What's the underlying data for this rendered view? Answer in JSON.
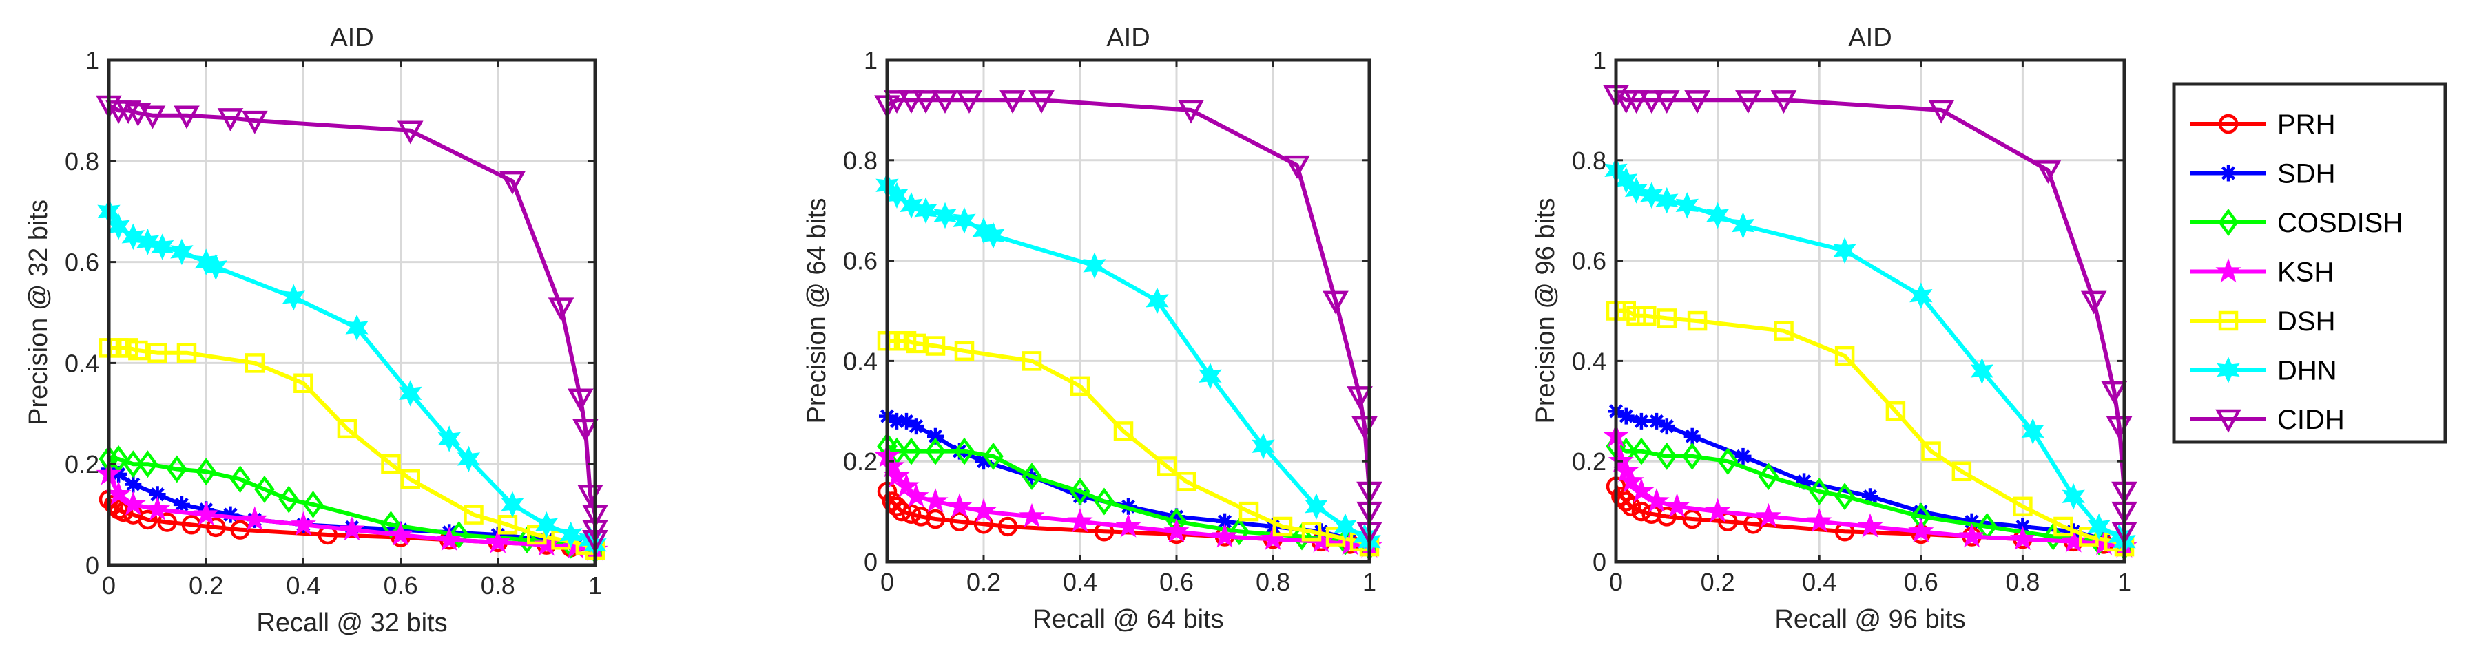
{
  "chart_data": [
    {
      "type": "line",
      "title": "AID",
      "xlabel": "Recall @ 32 bits",
      "ylabel": "Precision @ 32 bits",
      "xlim": [
        0,
        1
      ],
      "ylim": [
        0,
        1
      ],
      "xticks": [
        "0",
        "0.2",
        "0.4",
        "0.6",
        "0.8",
        "1"
      ],
      "yticks": [
        "0",
        "0.2",
        "0.4",
        "0.6",
        "0.8",
        "1"
      ],
      "grid": true,
      "series": [
        {
          "name": "PRH",
          "x": [
            0.0,
            0.01,
            0.02,
            0.03,
            0.05,
            0.08,
            0.12,
            0.17,
            0.22,
            0.27,
            0.45,
            0.6,
            0.7,
            0.8,
            0.9,
            0.95,
            1.0
          ],
          "y": [
            0.13,
            0.12,
            0.11,
            0.105,
            0.1,
            0.09,
            0.085,
            0.08,
            0.075,
            0.07,
            0.06,
            0.055,
            0.05,
            0.045,
            0.04,
            0.035,
            0.03
          ]
        },
        {
          "name": "SDH",
          "x": [
            0.0,
            0.02,
            0.05,
            0.1,
            0.15,
            0.2,
            0.25,
            0.3,
            0.4,
            0.5,
            0.6,
            0.7,
            0.8,
            0.9,
            0.96,
            1.0
          ],
          "y": [
            0.19,
            0.18,
            0.16,
            0.14,
            0.12,
            0.11,
            0.1,
            0.09,
            0.08,
            0.075,
            0.07,
            0.065,
            0.06,
            0.05,
            0.04,
            0.03
          ]
        },
        {
          "name": "COSDISH",
          "x": [
            0.0,
            0.02,
            0.05,
            0.08,
            0.14,
            0.2,
            0.27,
            0.32,
            0.37,
            0.42,
            0.58,
            0.72,
            0.86,
            0.95,
            1.0
          ],
          "y": [
            0.21,
            0.21,
            0.2,
            0.2,
            0.19,
            0.185,
            0.17,
            0.15,
            0.13,
            0.12,
            0.08,
            0.06,
            0.05,
            0.04,
            0.03
          ]
        },
        {
          "name": "KSH",
          "x": [
            0.0,
            0.02,
            0.05,
            0.1,
            0.2,
            0.3,
            0.4,
            0.5,
            0.6,
            0.7,
            0.8,
            0.9,
            0.96,
            1.0
          ],
          "y": [
            0.18,
            0.14,
            0.12,
            0.11,
            0.1,
            0.09,
            0.08,
            0.07,
            0.06,
            0.05,
            0.045,
            0.04,
            0.035,
            0.03
          ]
        },
        {
          "name": "DSH",
          "x": [
            0.0,
            0.02,
            0.04,
            0.06,
            0.1,
            0.16,
            0.3,
            0.4,
            0.49,
            0.58,
            0.62,
            0.75,
            0.82,
            0.88,
            0.93,
            0.98,
            1.0
          ],
          "y": [
            0.43,
            0.43,
            0.43,
            0.425,
            0.42,
            0.42,
            0.4,
            0.36,
            0.27,
            0.2,
            0.17,
            0.1,
            0.08,
            0.06,
            0.05,
            0.04,
            0.03
          ]
        },
        {
          "name": "DHN",
          "x": [
            0.0,
            0.02,
            0.05,
            0.08,
            0.11,
            0.15,
            0.2,
            0.22,
            0.38,
            0.51,
            0.62,
            0.7,
            0.74,
            0.83,
            0.9,
            0.95,
            0.99,
            1.0
          ],
          "y": [
            0.7,
            0.67,
            0.65,
            0.64,
            0.63,
            0.62,
            0.6,
            0.59,
            0.53,
            0.47,
            0.34,
            0.25,
            0.21,
            0.12,
            0.08,
            0.06,
            0.05,
            0.04
          ]
        },
        {
          "name": "CIDH",
          "x": [
            0.0,
            0.02,
            0.04,
            0.06,
            0.09,
            0.16,
            0.25,
            0.3,
            0.62,
            0.83,
            0.93,
            0.97,
            0.98,
            0.99,
            1.0,
            1.0,
            1.0
          ],
          "y": [
            0.91,
            0.9,
            0.9,
            0.895,
            0.89,
            0.89,
            0.885,
            0.88,
            0.86,
            0.76,
            0.51,
            0.33,
            0.27,
            0.14,
            0.1,
            0.07,
            0.05
          ]
        }
      ]
    },
    {
      "type": "line",
      "title": "AID",
      "xlabel": "Recall @ 64 bits",
      "ylabel": "Precision @ 64 bits",
      "xlim": [
        0,
        1
      ],
      "ylim": [
        0,
        1
      ],
      "xticks": [
        "0",
        "0.2",
        "0.4",
        "0.6",
        "0.8",
        "1"
      ],
      "yticks": [
        "0",
        "0.2",
        "0.4",
        "0.6",
        "0.8",
        "1"
      ],
      "grid": true,
      "series": [
        {
          "name": "PRH",
          "x": [
            0.0,
            0.01,
            0.02,
            0.03,
            0.05,
            0.07,
            0.1,
            0.15,
            0.2,
            0.25,
            0.45,
            0.6,
            0.7,
            0.8,
            0.9,
            0.96,
            1.0
          ],
          "y": [
            0.14,
            0.12,
            0.11,
            0.1,
            0.095,
            0.09,
            0.085,
            0.08,
            0.075,
            0.07,
            0.06,
            0.055,
            0.05,
            0.045,
            0.04,
            0.035,
            0.03
          ]
        },
        {
          "name": "SDH",
          "x": [
            0.0,
            0.02,
            0.04,
            0.06,
            0.1,
            0.15,
            0.2,
            0.3,
            0.4,
            0.5,
            0.6,
            0.7,
            0.8,
            0.9,
            0.96,
            1.0
          ],
          "y": [
            0.29,
            0.28,
            0.28,
            0.27,
            0.25,
            0.22,
            0.2,
            0.17,
            0.13,
            0.11,
            0.09,
            0.08,
            0.07,
            0.06,
            0.045,
            0.03
          ]
        },
        {
          "name": "COSDISH",
          "x": [
            0.0,
            0.02,
            0.05,
            0.1,
            0.16,
            0.22,
            0.3,
            0.4,
            0.45,
            0.6,
            0.73,
            0.86,
            0.95,
            1.0
          ],
          "y": [
            0.23,
            0.22,
            0.22,
            0.22,
            0.22,
            0.21,
            0.17,
            0.14,
            0.12,
            0.08,
            0.06,
            0.05,
            0.04,
            0.03
          ]
        },
        {
          "name": "KSH",
          "x": [
            0.0,
            0.01,
            0.02,
            0.04,
            0.06,
            0.1,
            0.15,
            0.2,
            0.3,
            0.4,
            0.5,
            0.6,
            0.7,
            0.8,
            0.9,
            0.96,
            1.0
          ],
          "y": [
            0.21,
            0.19,
            0.17,
            0.15,
            0.13,
            0.12,
            0.11,
            0.1,
            0.09,
            0.08,
            0.07,
            0.06,
            0.05,
            0.045,
            0.04,
            0.035,
            0.03
          ]
        },
        {
          "name": "DSH",
          "x": [
            0.0,
            0.02,
            0.04,
            0.06,
            0.1,
            0.16,
            0.3,
            0.4,
            0.49,
            0.58,
            0.62,
            0.75,
            0.82,
            0.88,
            0.93,
            0.98,
            1.0
          ],
          "y": [
            0.44,
            0.44,
            0.44,
            0.435,
            0.43,
            0.42,
            0.4,
            0.35,
            0.26,
            0.19,
            0.16,
            0.1,
            0.07,
            0.06,
            0.05,
            0.04,
            0.03
          ]
        },
        {
          "name": "DHN",
          "x": [
            0.0,
            0.02,
            0.05,
            0.08,
            0.12,
            0.16,
            0.2,
            0.22,
            0.43,
            0.56,
            0.67,
            0.78,
            0.89,
            0.95,
            0.99,
            1.0
          ],
          "y": [
            0.75,
            0.73,
            0.71,
            0.7,
            0.69,
            0.68,
            0.66,
            0.65,
            0.59,
            0.52,
            0.37,
            0.23,
            0.11,
            0.07,
            0.05,
            0.04
          ]
        },
        {
          "name": "CIDH",
          "x": [
            0.0,
            0.02,
            0.05,
            0.08,
            0.12,
            0.17,
            0.26,
            0.32,
            0.63,
            0.85,
            0.93,
            0.98,
            0.99,
            1.0,
            1.0,
            1.0
          ],
          "y": [
            0.91,
            0.92,
            0.92,
            0.92,
            0.92,
            0.92,
            0.92,
            0.92,
            0.9,
            0.79,
            0.52,
            0.33,
            0.27,
            0.14,
            0.1,
            0.06
          ]
        }
      ]
    },
    {
      "type": "line",
      "title": "AID",
      "xlabel": "Recall @ 96 bits",
      "ylabel": "Precision @ 96 bits",
      "xlim": [
        0,
        1
      ],
      "ylim": [
        0,
        1
      ],
      "xticks": [
        "0",
        "0.2",
        "0.4",
        "0.6",
        "0.8",
        "1"
      ],
      "yticks": [
        "0",
        "0.2",
        "0.4",
        "0.6",
        "0.8",
        "1"
      ],
      "grid": true,
      "series": [
        {
          "name": "PRH",
          "x": [
            0.0,
            0.01,
            0.02,
            0.03,
            0.05,
            0.07,
            0.1,
            0.15,
            0.22,
            0.27,
            0.45,
            0.6,
            0.7,
            0.8,
            0.9,
            0.96,
            1.0
          ],
          "y": [
            0.15,
            0.13,
            0.12,
            0.11,
            0.1,
            0.095,
            0.09,
            0.085,
            0.08,
            0.075,
            0.06,
            0.055,
            0.05,
            0.045,
            0.04,
            0.035,
            0.03
          ]
        },
        {
          "name": "SDH",
          "x": [
            0.0,
            0.02,
            0.05,
            0.08,
            0.1,
            0.15,
            0.25,
            0.37,
            0.5,
            0.6,
            0.7,
            0.8,
            0.9,
            0.96,
            1.0
          ],
          "y": [
            0.3,
            0.29,
            0.28,
            0.28,
            0.27,
            0.25,
            0.21,
            0.16,
            0.13,
            0.1,
            0.08,
            0.07,
            0.06,
            0.045,
            0.03
          ]
        },
        {
          "name": "COSDISH",
          "x": [
            0.0,
            0.02,
            0.05,
            0.1,
            0.15,
            0.22,
            0.3,
            0.4,
            0.45,
            0.6,
            0.73,
            0.86,
            0.95,
            1.0
          ],
          "y": [
            0.23,
            0.22,
            0.22,
            0.21,
            0.21,
            0.2,
            0.17,
            0.14,
            0.13,
            0.09,
            0.07,
            0.05,
            0.04,
            0.03
          ]
        },
        {
          "name": "KSH",
          "x": [
            0.0,
            0.01,
            0.02,
            0.03,
            0.05,
            0.08,
            0.12,
            0.2,
            0.3,
            0.4,
            0.5,
            0.6,
            0.7,
            0.8,
            0.9,
            0.96,
            1.0
          ],
          "y": [
            0.25,
            0.2,
            0.18,
            0.16,
            0.14,
            0.12,
            0.11,
            0.1,
            0.09,
            0.08,
            0.07,
            0.06,
            0.05,
            0.045,
            0.04,
            0.035,
            0.03
          ]
        },
        {
          "name": "DSH",
          "x": [
            0.0,
            0.02,
            0.04,
            0.06,
            0.1,
            0.16,
            0.33,
            0.45,
            0.55,
            0.62,
            0.68,
            0.8,
            0.88,
            0.93,
            0.98,
            1.0
          ],
          "y": [
            0.5,
            0.5,
            0.49,
            0.49,
            0.485,
            0.48,
            0.46,
            0.41,
            0.3,
            0.22,
            0.18,
            0.11,
            0.07,
            0.05,
            0.04,
            0.03
          ]
        },
        {
          "name": "DHN",
          "x": [
            0.0,
            0.02,
            0.04,
            0.07,
            0.1,
            0.14,
            0.2,
            0.25,
            0.45,
            0.6,
            0.72,
            0.82,
            0.9,
            0.95,
            0.99,
            1.0
          ],
          "y": [
            0.78,
            0.76,
            0.74,
            0.73,
            0.72,
            0.71,
            0.69,
            0.67,
            0.62,
            0.53,
            0.38,
            0.26,
            0.13,
            0.07,
            0.05,
            0.04
          ]
        },
        {
          "name": "CIDH",
          "x": [
            0.0,
            0.02,
            0.04,
            0.07,
            0.1,
            0.16,
            0.26,
            0.33,
            0.64,
            0.85,
            0.94,
            0.98,
            0.99,
            1.0,
            1.0,
            1.0
          ],
          "y": [
            0.93,
            0.92,
            0.92,
            0.92,
            0.92,
            0.92,
            0.92,
            0.92,
            0.9,
            0.78,
            0.52,
            0.34,
            0.27,
            0.14,
            0.1,
            0.06
          ]
        }
      ]
    }
  ],
  "legend": {
    "placement": "right",
    "entries": [
      {
        "name": "PRH",
        "color": "#ff0000",
        "marker": "circle"
      },
      {
        "name": "SDH",
        "color": "#0000ff",
        "marker": "asterisk"
      },
      {
        "name": "COSDISH",
        "color": "#00ff00",
        "marker": "diamond"
      },
      {
        "name": "KSH",
        "color": "#ff00ff",
        "marker": "pentagram"
      },
      {
        "name": "DSH",
        "color": "#ffff00",
        "marker": "square"
      },
      {
        "name": "DHN",
        "color": "#00ffff",
        "marker": "hexagram"
      },
      {
        "name": "CIDH",
        "color": "#aa00aa",
        "marker": "triangle-down"
      }
    ]
  }
}
